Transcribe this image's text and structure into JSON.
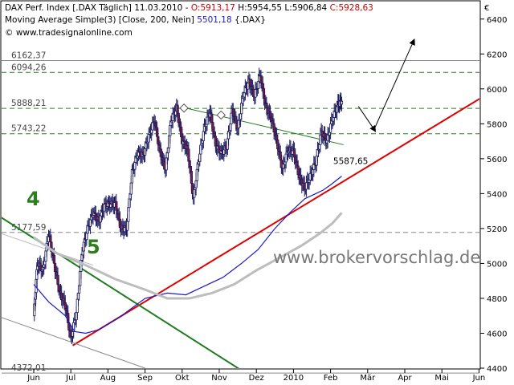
{
  "header": {
    "line1": {
      "name": "DAX Perf. Index [.DAX Täglich] 11.03.2010 - ",
      "open": "O:5913,17",
      "high": "H:5954,55",
      "low": "L:5906,84",
      "close": "C:5928,63",
      "color_open": "#cc0000",
      "color_close": "#cc0000"
    },
    "line2": {
      "name": "Moving Average Simple(3) [Close, 200, Nein]",
      "value": "5501,18",
      "suffix": "{.DAX}",
      "color_value": "#1a1acc"
    },
    "line3": "© www.tradesignalonline.com"
  },
  "currency_symbol": "€",
  "watermark": "www.brokervorschlag.de",
  "wave_labels": {
    "four": "4",
    "five": "5"
  },
  "chart_data": {
    "type": "line",
    "title": "DAX Perf. Index [.DAX Täglich]",
    "x_labels": [
      "Jun",
      "Jul",
      "Aug",
      "Sep",
      "Okt",
      "Nov",
      "Dez",
      "2010",
      "Feb",
      "Mär",
      "Apr",
      "Mai",
      "Jun"
    ],
    "x_index": [
      0,
      1,
      2,
      3,
      4,
      5,
      6,
      7,
      8,
      9,
      10,
      11,
      12
    ],
    "ylim": [
      4400,
      6500
    ],
    "y_ticks": [
      4400,
      4600,
      4800,
      5000,
      5200,
      5400,
      5600,
      5800,
      6000,
      6200,
      6400
    ],
    "grid": false,
    "series": [
      {
        "name": "DAX Perf. Index",
        "style": "ohlc-candles",
        "x": [
          0,
          0.1,
          0.25,
          0.4,
          0.55,
          0.7,
          0.85,
          1.0,
          1.15,
          1.3,
          1.45,
          1.6,
          1.75,
          1.9,
          2.05,
          2.2,
          2.35,
          2.5,
          2.65,
          2.8,
          2.95,
          3.1,
          3.25,
          3.4,
          3.55,
          3.7,
          3.85,
          4.0,
          4.15,
          4.3,
          4.45,
          4.6,
          4.75,
          4.9,
          5.05,
          5.2,
          5.35,
          5.5,
          5.65,
          5.8,
          5.95,
          6.1,
          6.25,
          6.4,
          6.55,
          6.7,
          6.85,
          7.0,
          7.15,
          7.3,
          7.45,
          7.6,
          7.75,
          7.9,
          8.05,
          8.2,
          8.3
        ],
        "values": [
          4700,
          5000,
          4960,
          5170,
          5000,
          4830,
          4760,
          4570,
          4720,
          5060,
          5200,
          5290,
          5240,
          5330,
          5340,
          5340,
          5200,
          5200,
          5520,
          5630,
          5620,
          5730,
          5820,
          5640,
          5540,
          5820,
          5890,
          5700,
          5650,
          5370,
          5600,
          5780,
          5870,
          5680,
          5630,
          5670,
          5880,
          5770,
          5970,
          6040,
          5960,
          6080,
          5900,
          5830,
          5700,
          5540,
          5650,
          5640,
          5500,
          5430,
          5500,
          5580,
          5750,
          5700,
          5830,
          5910,
          5929
        ]
      },
      {
        "name": "Moving Average Simple(3)",
        "color": "#1a1acc",
        "x": [
          0,
          0.4,
          0.85,
          1.1,
          1.4,
          1.75,
          2.3,
          3.0,
          3.6,
          4.1,
          4.6,
          5.1,
          5.6,
          6.05,
          6.5,
          6.9,
          7.3,
          7.6,
          7.8,
          8.0,
          8.3
        ],
        "values": [
          4880,
          4780,
          4700,
          4610,
          4600,
          4620,
          4690,
          4800,
          4830,
          4820,
          4870,
          4920,
          5000,
          5080,
          5200,
          5290,
          5370,
          5400,
          5420,
          5450,
          5500
        ]
      },
      {
        "name": "200-day average",
        "color": "#bdbdbd",
        "x": [
          0,
          0.6,
          1.4,
          2.2,
          3.0,
          3.6,
          4.2,
          4.8,
          5.4,
          6.0,
          6.6,
          7.2,
          7.7,
          8.05,
          8.3
        ],
        "values": [
          5150,
          5060,
          4990,
          4910,
          4850,
          4800,
          4800,
          4830,
          4880,
          4960,
          5030,
          5100,
          5170,
          5230,
          5290
        ]
      }
    ],
    "trendlines": [
      {
        "name": "red support",
        "color": "#e00000",
        "width": 2,
        "x": [
          1.05,
          13.0
        ],
        "y": [
          4530,
          6070
        ]
      },
      {
        "name": "green downtrend",
        "color": "#1e7d1e",
        "width": 2,
        "x": [
          -1.0,
          5.8
        ],
        "y": [
          5280,
          4360
        ]
      },
      {
        "name": "green neckline",
        "color": "#1e7d1e",
        "width": 1,
        "x": [
          4.1,
          8.35
        ],
        "y": [
          5890,
          5680
        ]
      },
      {
        "name": "lower channel",
        "color": "#888888",
        "width": 1,
        "x": [
          -1.0,
          3.0
        ],
        "y": [
          4700,
          4400
        ]
      },
      {
        "name": "upper channel",
        "color": "#bbbbbb",
        "width": 1,
        "x": [
          -1.0,
          1.6
        ],
        "y": [
          5180,
          4990
        ]
      }
    ],
    "levels": [
      {
        "label": "6162,37",
        "value": 6162.37,
        "color": "#888888",
        "dashed": false
      },
      {
        "label": "6094,26",
        "value": 6094.26,
        "color": "#2e7d1f",
        "dashed": true
      },
      {
        "label": "5888,21",
        "value": 5888.21,
        "color": "#2e7d1f",
        "dashed": true
      },
      {
        "label": "5743,22",
        "value": 5743.22,
        "color": "#2e7d1f",
        "dashed": true
      },
      {
        "label": "5177,59",
        "value": 5177.59,
        "color": "#888888",
        "dashed": true
      },
      {
        "label": "4372,01",
        "value": 4372.01,
        "color": "#888888",
        "dashed": false
      }
    ],
    "annotations": [
      {
        "label": "5587,65",
        "x": 8.05,
        "y": 5587.65,
        "color": "#cc0000"
      }
    ],
    "arrows": [
      {
        "x": [
          8.75,
          9.2
        ],
        "y": [
          5900,
          5760
        ]
      },
      {
        "x": [
          9.2,
          10.25
        ],
        "y": [
          5780,
          6280
        ]
      }
    ],
    "markers": [
      {
        "x": 4.05,
        "y": 5890
      },
      {
        "x": 5.05,
        "y": 5850
      }
    ]
  }
}
